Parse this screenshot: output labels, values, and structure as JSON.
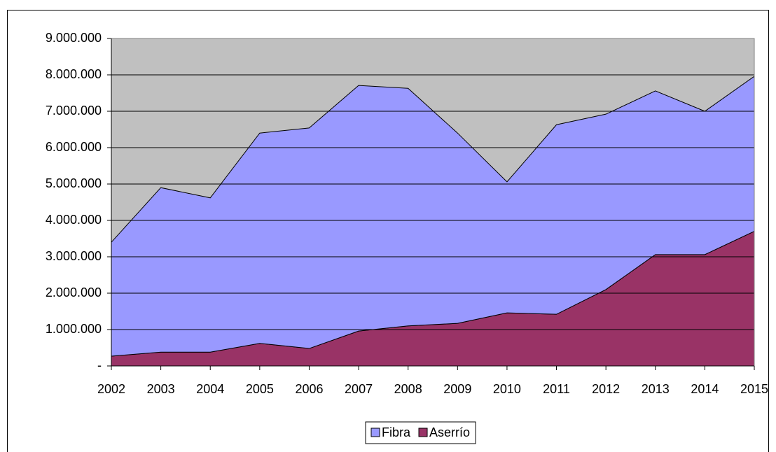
{
  "chart_data": {
    "type": "stacked-area",
    "categories": [
      "2002",
      "2003",
      "2004",
      "2005",
      "2006",
      "2007",
      "2008",
      "2009",
      "2010",
      "2011",
      "2012",
      "2013",
      "2014",
      "2015"
    ],
    "series": [
      {
        "name": "Fibra",
        "color": "#9999ff",
        "values": [
          3130000,
          4520000,
          4240000,
          5780000,
          6060000,
          6750000,
          6530000,
          5230000,
          3600000,
          5210000,
          4820000,
          4500000,
          3940000,
          4260000
        ]
      },
      {
        "name": "Aserrío",
        "color": "#993366",
        "values": [
          270000,
          380000,
          380000,
          620000,
          480000,
          960000,
          1100000,
          1170000,
          1460000,
          1420000,
          2100000,
          3060000,
          3060000,
          3700000
        ]
      }
    ],
    "ylim": [
      0,
      9000000
    ],
    "yticks": [
      {
        "value": 0,
        "label": "-"
      },
      {
        "value": 1000000,
        "label": "1.000.000"
      },
      {
        "value": 2000000,
        "label": "2.000.000"
      },
      {
        "value": 3000000,
        "label": "3.000.000"
      },
      {
        "value": 4000000,
        "label": "4.000.000"
      },
      {
        "value": 5000000,
        "label": "5.000.000"
      },
      {
        "value": 6000000,
        "label": "6.000.000"
      },
      {
        "value": 7000000,
        "label": "7.000.000"
      },
      {
        "value": 8000000,
        "label": "8.000.000"
      },
      {
        "value": 9000000,
        "label": "9.000.000"
      }
    ],
    "grid": true,
    "plot_background": "#c0c0c0",
    "legend": "bottom"
  }
}
